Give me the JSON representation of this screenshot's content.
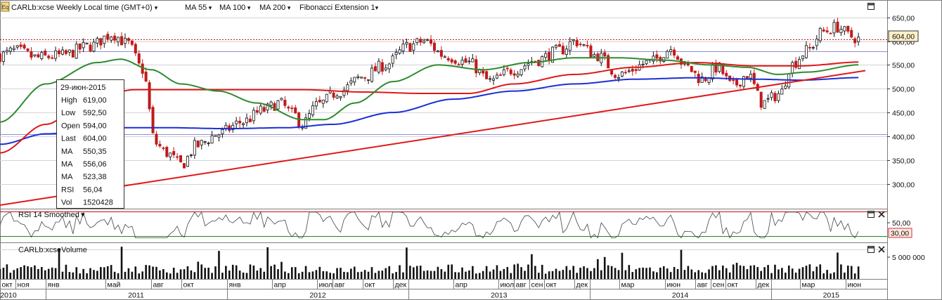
{
  "header": {
    "badge": "Eq",
    "symbol": "CARLb:xcse",
    "period": "Weekly",
    "timezone": "Local time (GMT+0)",
    "ma55_label": "MA 55",
    "ma100_label": "MA 100",
    "ma200_label": "MA 200",
    "fib_label": "Fibonacci Extension 1"
  },
  "colors": {
    "up": "#111111",
    "down": "#c11a1a",
    "ma55": "#2e8b2e",
    "ma100": "#e01818",
    "ma200": "#1a2fd6",
    "trend": "#e01818",
    "fib": "#8f8fd8",
    "last_price_line": "#c01010",
    "rsi": "#444444",
    "rsi_level": "#1c8a1c",
    "grid": "#d4d4d4",
    "volume": "#111111"
  },
  "tooltip": {
    "date": "29-июн-2015",
    "rows": [
      {
        "label": "High",
        "value": "619,00",
        "color": "#111111"
      },
      {
        "label": "Low",
        "value": "592,50",
        "color": "#111111"
      },
      {
        "label": "Open",
        "value": "594,00",
        "color": "#111111"
      },
      {
        "label": "Last",
        "value": "604,00",
        "color": "#111111"
      },
      {
        "label": "MA",
        "value": "550,35",
        "color": "#2e8b2e"
      },
      {
        "label": "MA",
        "value": "556,06",
        "color": "#e01818"
      },
      {
        "label": "MA",
        "value": "523,38",
        "color": "#1a2fd6"
      },
      {
        "label": "RSI",
        "value": "56,04",
        "color": "#111111"
      },
      {
        "label": "Vol",
        "value": "1520428",
        "color": "#111111"
      }
    ]
  },
  "rsi_panel": {
    "title": "RSI 14 Smoothed",
    "tick": "50,00",
    "level_badge": "30,00"
  },
  "volume_panel": {
    "title": "CARLb:xcseVolume",
    "tick": "5 000 000"
  },
  "price_badge": "604,00",
  "chart_data": [
    {
      "type": "candlestick",
      "title": "CARLb:xcse Weekly",
      "ylim": [
        255,
        660
      ],
      "y_ticks": [
        "650,00",
        "600,00",
        "550,00",
        "500,00",
        "450,00",
        "400,00",
        "350,00",
        "300,00"
      ],
      "y_tick_values": [
        650,
        600,
        550,
        500,
        450,
        400,
        350,
        300
      ],
      "x_range": [
        "2010-10-01",
        "2015-07-10"
      ],
      "month_ticks": [
        {
          "date": "2010-10-01",
          "label": "окт"
        },
        {
          "date": "2010-11-01",
          "label": "ноя"
        },
        {
          "date": "2011-01-01",
          "label": "янв"
        },
        {
          "date": "2011-05-01",
          "label": "май"
        },
        {
          "date": "2011-08-01",
          "label": "авг"
        },
        {
          "date": "2011-10-01",
          "label": "окт"
        },
        {
          "date": "2012-01-01",
          "label": "янв"
        },
        {
          "date": "2012-04-01",
          "label": "апр"
        },
        {
          "date": "2012-07-01",
          "label": "июл"
        },
        {
          "date": "2012-08-01",
          "label": "авг"
        },
        {
          "date": "2012-10-01",
          "label": "окт"
        },
        {
          "date": "2012-12-01",
          "label": "дек"
        },
        {
          "date": "2013-04-01",
          "label": "апр"
        },
        {
          "date": "2013-07-01",
          "label": "июл"
        },
        {
          "date": "2013-08-01",
          "label": "авг"
        },
        {
          "date": "2013-09-01",
          "label": "сен"
        },
        {
          "date": "2013-10-01",
          "label": "окт"
        },
        {
          "date": "2013-12-01",
          "label": "дек"
        },
        {
          "date": "2014-03-01",
          "label": "мар"
        },
        {
          "date": "2014-06-01",
          "label": "июн"
        },
        {
          "date": "2014-08-01",
          "label": "авг"
        },
        {
          "date": "2014-09-01",
          "label": "сен"
        },
        {
          "date": "2014-10-01",
          "label": "окт"
        },
        {
          "date": "2014-12-01",
          "label": "дек"
        },
        {
          "date": "2015-03-01",
          "label": "мар"
        },
        {
          "date": "2015-06-01",
          "label": "июн"
        }
      ],
      "year_ticks": [
        {
          "date": "2010-10-01",
          "label": "2010"
        },
        {
          "date": "2011-06-15",
          "label": "2011"
        },
        {
          "date": "2012-06-15",
          "label": "2012"
        },
        {
          "date": "2013-06-15",
          "label": "2013"
        },
        {
          "date": "2014-06-15",
          "label": "2014"
        },
        {
          "date": "2015-04-15",
          "label": "2015"
        }
      ],
      "year_separators": [
        "2011-01-01",
        "2012-01-01",
        "2013-01-01",
        "2014-01-01",
        "2015-01-01"
      ],
      "close_anchors": [
        [
          "2010-10-01",
          570
        ],
        [
          "2010-11-01",
          580
        ],
        [
          "2010-12-15",
          565
        ],
        [
          "2011-02-01",
          570
        ],
        [
          "2011-04-01",
          590
        ],
        [
          "2011-05-15",
          615
        ],
        [
          "2011-06-15",
          595
        ],
        [
          "2011-07-15",
          540
        ],
        [
          "2011-08-10",
          385
        ],
        [
          "2011-09-01",
          365
        ],
        [
          "2011-10-01",
          340
        ],
        [
          "2011-11-01",
          380
        ],
        [
          "2011-12-15",
          405
        ],
        [
          "2012-02-01",
          430
        ],
        [
          "2012-03-15",
          455
        ],
        [
          "2012-04-15",
          470
        ],
        [
          "2012-05-15",
          445
        ],
        [
          "2012-06-01",
          425
        ],
        [
          "2012-07-01",
          465
        ],
        [
          "2012-08-15",
          495
        ],
        [
          "2012-10-01",
          525
        ],
        [
          "2012-11-15",
          550
        ],
        [
          "2013-01-01",
          590
        ],
        [
          "2013-02-01",
          600
        ],
        [
          "2013-03-15",
          570
        ],
        [
          "2013-05-01",
          555
        ],
        [
          "2013-06-15",
          515
        ],
        [
          "2013-08-01",
          540
        ],
        [
          "2013-09-15",
          560
        ],
        [
          "2013-11-01",
          580
        ],
        [
          "2013-12-01",
          600
        ],
        [
          "2014-01-15",
          570
        ],
        [
          "2014-03-01",
          530
        ],
        [
          "2014-05-01",
          555
        ],
        [
          "2014-06-15",
          585
        ],
        [
          "2014-07-15",
          545
        ],
        [
          "2014-08-15",
          520
        ],
        [
          "2014-09-15",
          545
        ],
        [
          "2014-10-15",
          505
        ],
        [
          "2014-11-15",
          530
        ],
        [
          "2014-12-15",
          470
        ],
        [
          "2015-01-20",
          490
        ],
        [
          "2015-02-10",
          550
        ],
        [
          "2015-03-15",
          580
        ],
        [
          "2015-04-15",
          620
        ],
        [
          "2015-05-15",
          630
        ],
        [
          "2015-06-10",
          610
        ],
        [
          "2015-06-29",
          604
        ]
      ],
      "ma55": [
        [
          "2010-10-01",
          430
        ],
        [
          "2011-01-01",
          510
        ],
        [
          "2011-04-15",
          555
        ],
        [
          "2011-06-01",
          562
        ],
        [
          "2011-08-01",
          540
        ],
        [
          "2011-10-01",
          510
        ],
        [
          "2011-12-15",
          495
        ],
        [
          "2012-03-01",
          470
        ],
        [
          "2012-06-01",
          435
        ],
        [
          "2012-07-15",
          435
        ],
        [
          "2012-09-15",
          470
        ],
        [
          "2012-12-01",
          515
        ],
        [
          "2013-03-01",
          550
        ],
        [
          "2013-06-01",
          540
        ],
        [
          "2013-09-01",
          555
        ],
        [
          "2013-12-01",
          565
        ],
        [
          "2014-03-01",
          565
        ],
        [
          "2014-06-01",
          560
        ],
        [
          "2014-09-01",
          550
        ],
        [
          "2014-11-15",
          545
        ],
        [
          "2015-01-15",
          530
        ],
        [
          "2015-03-15",
          535
        ],
        [
          "2015-06-29",
          550.35
        ]
      ],
      "ma100": [
        [
          "2010-10-01",
          365
        ],
        [
          "2011-01-01",
          425
        ],
        [
          "2011-04-01",
          480
        ],
        [
          "2011-07-01",
          498
        ],
        [
          "2012-01-01",
          498
        ],
        [
          "2012-06-01",
          498
        ],
        [
          "2012-10-01",
          493
        ],
        [
          "2013-02-01",
          490
        ],
        [
          "2013-05-01",
          490
        ],
        [
          "2013-08-01",
          510
        ],
        [
          "2013-12-01",
          530
        ],
        [
          "2014-04-01",
          545
        ],
        [
          "2014-08-01",
          555
        ],
        [
          "2014-12-01",
          548
        ],
        [
          "2015-03-01",
          548
        ],
        [
          "2015-06-29",
          556.06
        ]
      ],
      "ma200": [
        [
          "2010-10-01",
          383
        ],
        [
          "2011-01-01",
          405
        ],
        [
          "2011-05-01",
          418
        ],
        [
          "2011-09-01",
          418
        ],
        [
          "2012-01-01",
          416
        ],
        [
          "2012-05-01",
          418
        ],
        [
          "2012-08-01",
          425
        ],
        [
          "2012-12-01",
          450
        ],
        [
          "2013-04-01",
          478
        ],
        [
          "2013-08-01",
          495
        ],
        [
          "2013-12-01",
          510
        ],
        [
          "2014-04-01",
          520
        ],
        [
          "2014-08-01",
          523
        ],
        [
          "2014-12-01",
          520
        ],
        [
          "2015-03-01",
          518
        ],
        [
          "2015-06-29",
          523.38
        ]
      ],
      "trendline": [
        [
          "2010-10-01",
          255
        ],
        [
          "2015-07-10",
          538
        ]
      ],
      "fib_levels": [
        578,
        405
      ],
      "price_line": 604
    },
    {
      "type": "line",
      "title": "RSI 14 Smoothed",
      "ylim": [
        20,
        80
      ],
      "level": 30,
      "last": 56.04
    },
    {
      "type": "bar",
      "title": "CARLb:xcseVolume",
      "ylim": [
        0,
        6000000
      ],
      "y_tick": 5000000,
      "last": 1520428
    }
  ]
}
